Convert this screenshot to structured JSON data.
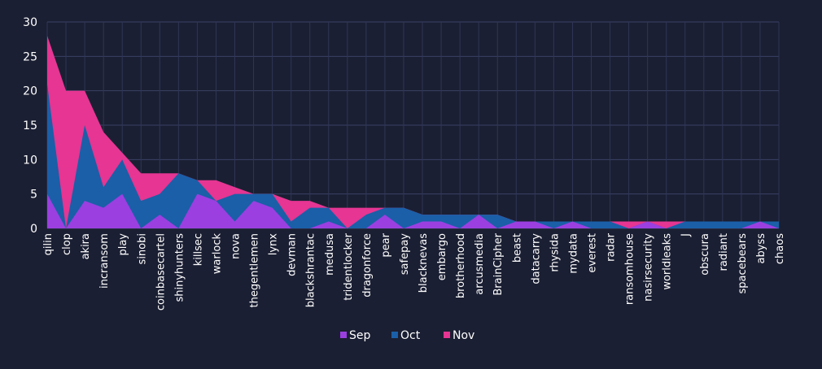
{
  "chart_data": {
    "type": "area",
    "title": "",
    "xlabel": "",
    "ylabel": "",
    "ylim": [
      0,
      30
    ],
    "yticks": [
      0,
      5,
      10,
      15,
      20,
      25,
      30
    ],
    "grid": true,
    "legend_position": "bottom-center",
    "categories": [
      "qilin",
      "clop",
      "akira",
      "incransom",
      "play",
      "sinobi",
      "coinbasecartel",
      "shinyhunters",
      "killsec",
      "warlock",
      "nova",
      "thegentlemen",
      "lynx",
      "devman",
      "blackshrantac",
      "medusa",
      "tridentlocker",
      "dragonforce",
      "pear",
      "safepay",
      "blacknevas",
      "embargo",
      "brotherhood",
      "arcusmedia",
      "BrainCipher",
      "beast",
      "datacarry",
      "rhysida",
      "mydata",
      "everest",
      "radar",
      "ransomhouse",
      "nasirsecurity",
      "worldleaks",
      "J",
      "obscura",
      "radiant",
      "spacebears",
      "abyss",
      "chaos"
    ],
    "series": [
      {
        "name": "Sep",
        "color": "#9b3fe0",
        "values": [
          5,
          0,
          4,
          3,
          5,
          0,
          2,
          0,
          5,
          4,
          1,
          4,
          3,
          0,
          0,
          1,
          0,
          0,
          2,
          0,
          1,
          1,
          0,
          2,
          0,
          1,
          1,
          0,
          1,
          0,
          0,
          0,
          1,
          0,
          0,
          0,
          0,
          0,
          1,
          0
        ]
      },
      {
        "name": "Oct",
        "color": "#1a5fa8",
        "values": [
          21,
          0,
          15,
          6,
          10,
          4,
          5,
          8,
          7,
          4,
          5,
          5,
          5,
          1,
          3,
          3,
          0,
          2,
          3,
          3,
          2,
          2,
          2,
          2,
          2,
          1,
          1,
          1,
          1,
          1,
          1,
          0,
          1,
          0,
          1,
          1,
          1,
          1,
          1,
          1
        ]
      },
      {
        "name": "Nov",
        "color": "#e63592",
        "values": [
          28,
          20,
          20,
          14,
          11,
          8,
          8,
          8,
          7,
          7,
          6,
          5,
          5,
          4,
          4,
          3,
          3,
          3,
          3,
          3,
          2,
          2,
          2,
          2,
          2,
          1,
          1,
          1,
          1,
          1,
          1,
          1,
          1,
          1,
          1,
          1,
          1,
          1,
          1,
          1
        ]
      }
    ]
  }
}
